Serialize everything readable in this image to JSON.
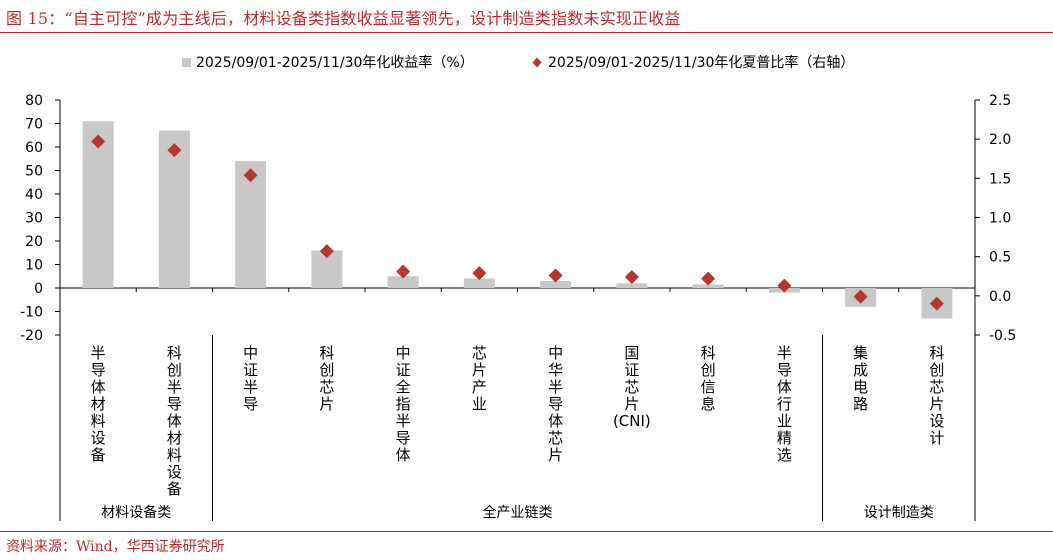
{
  "header": {
    "title": "图 15：“自主可控”成为主线后，材料设备类指数收益显著领先，设计制造类指数未实现正收益"
  },
  "footer": {
    "source": "资料来源：Wind，华西证券研究所"
  },
  "colors": {
    "bar": "#c8c8c8",
    "marker": "#b5372f",
    "brand": "#c0292b"
  },
  "chart_data": {
    "type": "bar",
    "legend_position": "top",
    "grid": false,
    "categories": [
      "半导体材料设备",
      "科创半导体材料设备",
      "中证半导",
      "科创芯片",
      "中证全指半导体",
      "芯片产业",
      "中华半导体芯片",
      "国证芯片(CNI)",
      "科创信息",
      "半导体行业精选",
      "集成电路",
      "科创芯片设计"
    ],
    "groups": [
      {
        "label": "材料设备类",
        "count": 2
      },
      {
        "label": "全产业链类",
        "count": 8
      },
      {
        "label": "设计制造类",
        "count": 2
      }
    ],
    "series": [
      {
        "name": "2025/09/01-2025/11/30年化收益率（%）",
        "type": "bar",
        "axis": "left",
        "values": [
          71,
          67,
          54,
          16,
          5,
          4,
          3,
          2,
          1.5,
          -2,
          -8,
          -13
        ]
      },
      {
        "name": "2025/09/01-2025/11/30年化夏普比率（右轴）",
        "type": "scatter",
        "marker": "diamond",
        "axis": "right",
        "values": [
          1.97,
          1.86,
          1.54,
          0.57,
          0.31,
          0.29,
          0.26,
          0.24,
          0.22,
          0.13,
          -0.01,
          -0.1
        ]
      }
    ],
    "y_left": {
      "min": -20,
      "max": 80,
      "ticks": [
        80,
        70,
        60,
        50,
        40,
        30,
        20,
        10,
        0,
        -10,
        -20
      ]
    },
    "y_right": {
      "min": -0.5,
      "max": 2.5,
      "ticks": [
        "2.5",
        "2.0",
        "1.5",
        "1.0",
        "0.5",
        "0.0",
        "-0.5"
      ]
    }
  }
}
